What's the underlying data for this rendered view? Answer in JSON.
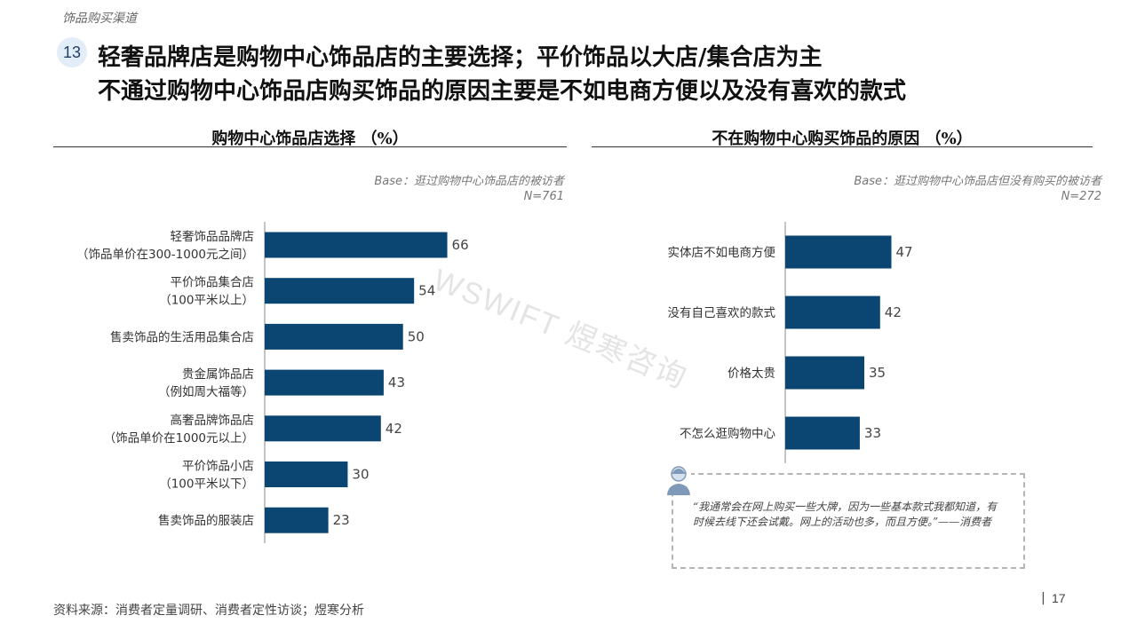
{
  "header": {
    "breadcrumb": "饰品购买渠道",
    "page_badge": "13",
    "title_line1": "轻奢品牌店是购物中心饰品店的主要选择；平价饰品以大店/集合店为主",
    "title_line2": "不通过购物中心饰品店购买饰品的原因主要是不如电商方便以及没有喜欢的款式"
  },
  "watermark": "WSWIFT 煜寒咨询",
  "left_panel": {
    "title": "购物中心饰品店选择 （%）",
    "base_line1": "Base：逛过购物中心饰品店的被访者",
    "base_line2": "N=761"
  },
  "right_panel": {
    "title": "不在购物中心购买饰品的原因 （%）",
    "base_line1": "Base：逛过购物中心饰品店但没有购买的被访者",
    "base_line2": "N=272"
  },
  "quote": {
    "text": "“我通常会在网上购买一些大牌，因为一些基本款式我都知道，有时候去线下还会试戴。网上的活动也多，而且方便。”——消费者"
  },
  "footer": {
    "source": "资料来源：消费者定量调研、消费者定性访谈；煜寒分析",
    "page_number": "17"
  },
  "colors": {
    "bar": "#0b4571",
    "axis": "#888888",
    "text": "#333333"
  },
  "chart_data": [
    {
      "type": "bar",
      "orientation": "horizontal",
      "title": "购物中心饰品店选择 （%）",
      "categories": [
        [
          "轻奢饰品品牌店",
          "（饰品单价在300-1000元之间）"
        ],
        [
          "平价饰品集合店",
          "（100平米以上）"
        ],
        [
          "售卖饰品的生活用品集合店"
        ],
        [
          "贵金属饰品店",
          "（例如周大福等）"
        ],
        [
          "高奢品牌饰品店",
          "（饰品单价在1000元以上）"
        ],
        [
          "平价饰品小店",
          "（100平米以下）"
        ],
        [
          "售卖饰品的服装店"
        ]
      ],
      "values": [
        66,
        54,
        50,
        43,
        42,
        30,
        23
      ],
      "xlim": [
        0,
        70
      ],
      "data_labels": true,
      "grid": false
    },
    {
      "type": "bar",
      "orientation": "horizontal",
      "title": "不在购物中心购买饰品的原因 （%）",
      "categories": [
        [
          "实体店不如电商方便"
        ],
        [
          "没有自己喜欢的款式"
        ],
        [
          "价格太贵"
        ],
        [
          "不怎么逛购物中心"
        ]
      ],
      "values": [
        47,
        42,
        35,
        33
      ],
      "xlim": [
        0,
        70
      ],
      "data_labels": true,
      "grid": false
    }
  ]
}
